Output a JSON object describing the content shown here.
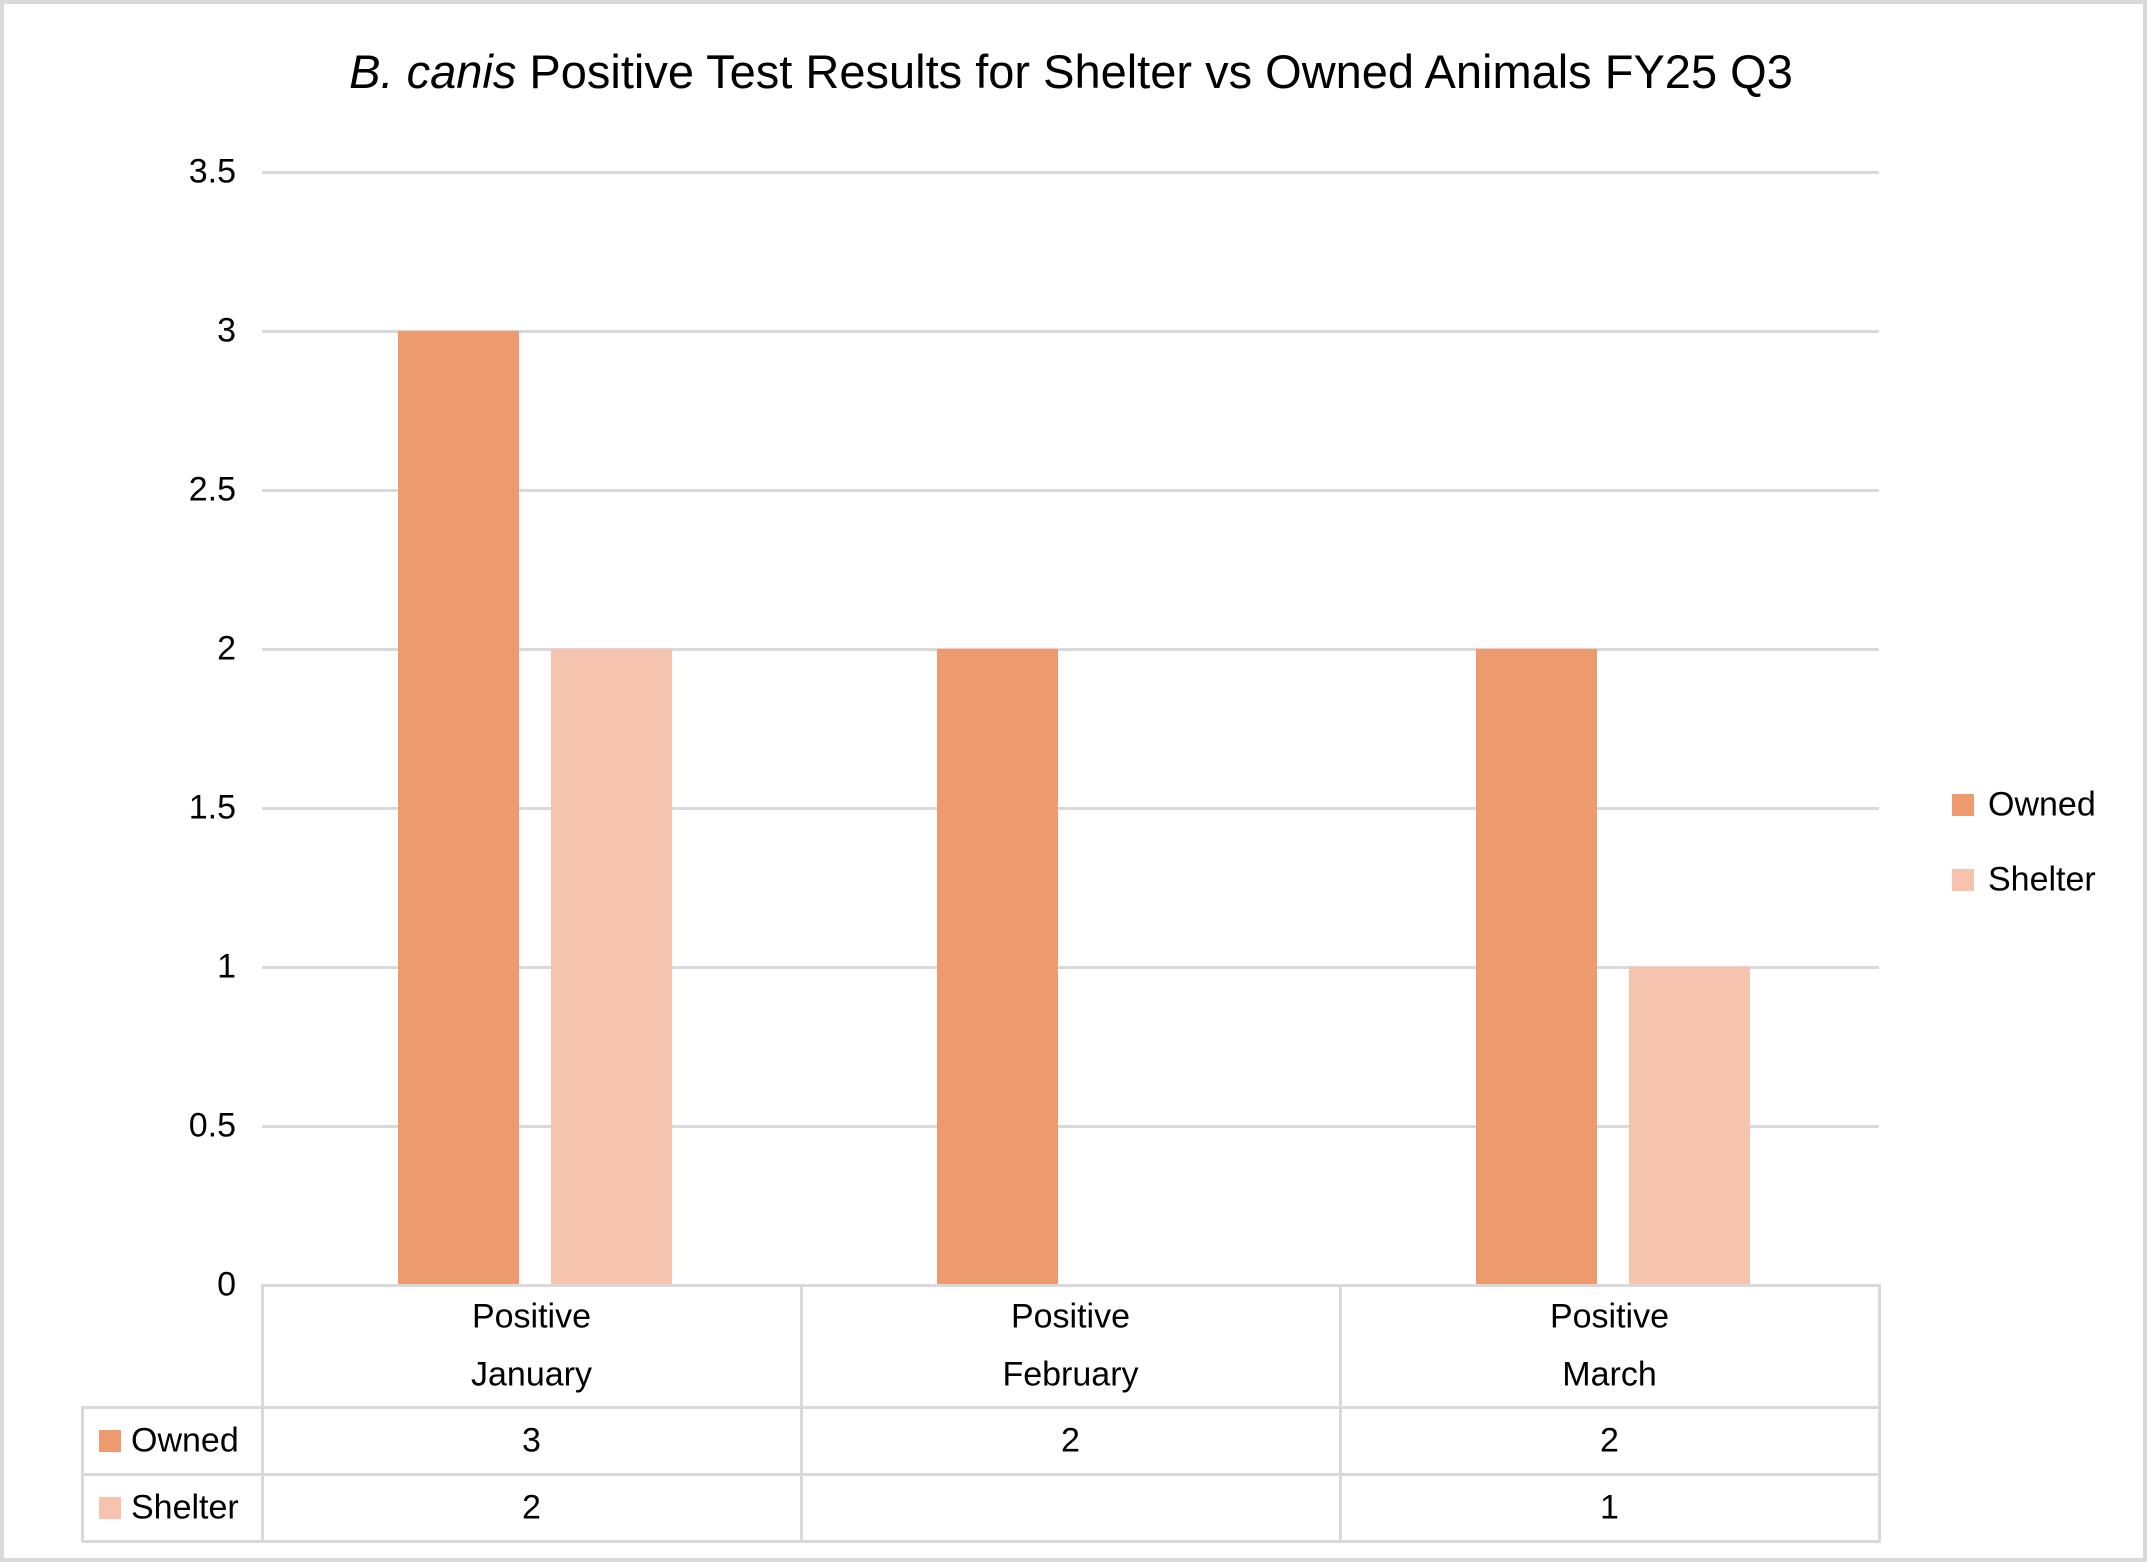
{
  "title": {
    "italic_part": "B. canis",
    "regular_part": " Positive Test Results for Shelter vs Owned Animals FY25 Q3"
  },
  "chart_data": {
    "type": "bar",
    "title": "B. canis Positive Test Results for Shelter vs Owned Animals FY25 Q3",
    "title_italic_segment": "B. canis",
    "categories": [
      {
        "lines": [
          "Positive",
          "January"
        ]
      },
      {
        "lines": [
          "Positive",
          "February"
        ]
      },
      {
        "lines": [
          "Positive",
          "March"
        ]
      }
    ],
    "series": [
      {
        "name": "Owned",
        "color": "#EE9A6F",
        "values": [
          3,
          2,
          2
        ]
      },
      {
        "name": "Shelter",
        "color": "#F5C3AE",
        "values": [
          2,
          null,
          1
        ]
      }
    ],
    "ylim": [
      0,
      3.5
    ],
    "yticks": [
      3.5,
      3,
      2.5,
      2,
      1.5,
      1,
      0.5,
      0
    ],
    "ytick_labels": [
      "3.5",
      "3",
      "2.5",
      "2",
      "1.5",
      "1",
      "0.5",
      "0"
    ],
    "grid": true,
    "grid_color": "#D9D9D9",
    "legend_position": "right",
    "data_table": {
      "row_headers": [
        "Owned",
        "Shelter"
      ],
      "cell_values": [
        [
          "3",
          "2",
          "2"
        ],
        [
          "2",
          "",
          "1"
        ]
      ]
    }
  }
}
